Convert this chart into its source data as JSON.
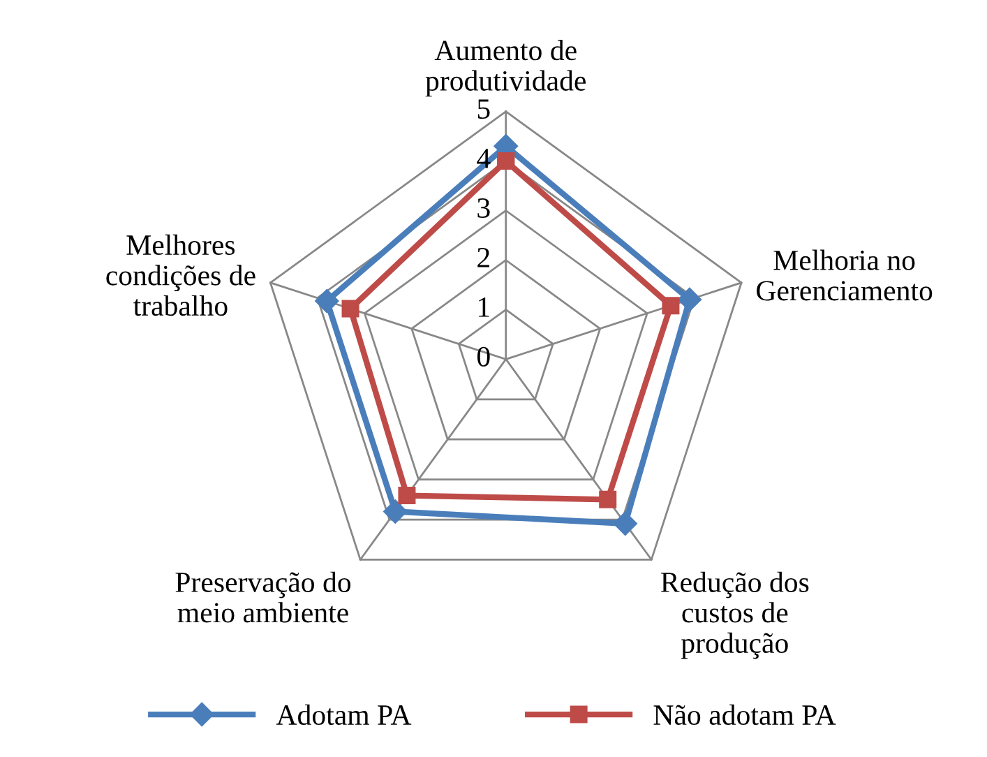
{
  "chart_data": {
    "type": "radar",
    "categories": [
      "Aumento de\nprodutividade",
      "Melhoria no\nGerenciamento",
      "Redução dos\ncustos de\nprodução",
      "Preservação do\nmeio ambiente",
      "Melhores\ncondições de\ntrabalho"
    ],
    "series": [
      {
        "name": "Adotam PA",
        "color": "#4a7ebb",
        "marker": "diamond",
        "values": [
          4.3,
          3.9,
          4.1,
          3.8,
          3.8
        ]
      },
      {
        "name": "Não adotam PA",
        "color": "#be4b48",
        "marker": "square",
        "values": [
          4.0,
          3.5,
          3.5,
          3.4,
          3.3
        ]
      }
    ],
    "ylim": [
      0,
      5
    ],
    "yticks": [
      0,
      1,
      2,
      3,
      4,
      5
    ],
    "legend": "bottom",
    "grid": true,
    "line_style": "solid"
  }
}
